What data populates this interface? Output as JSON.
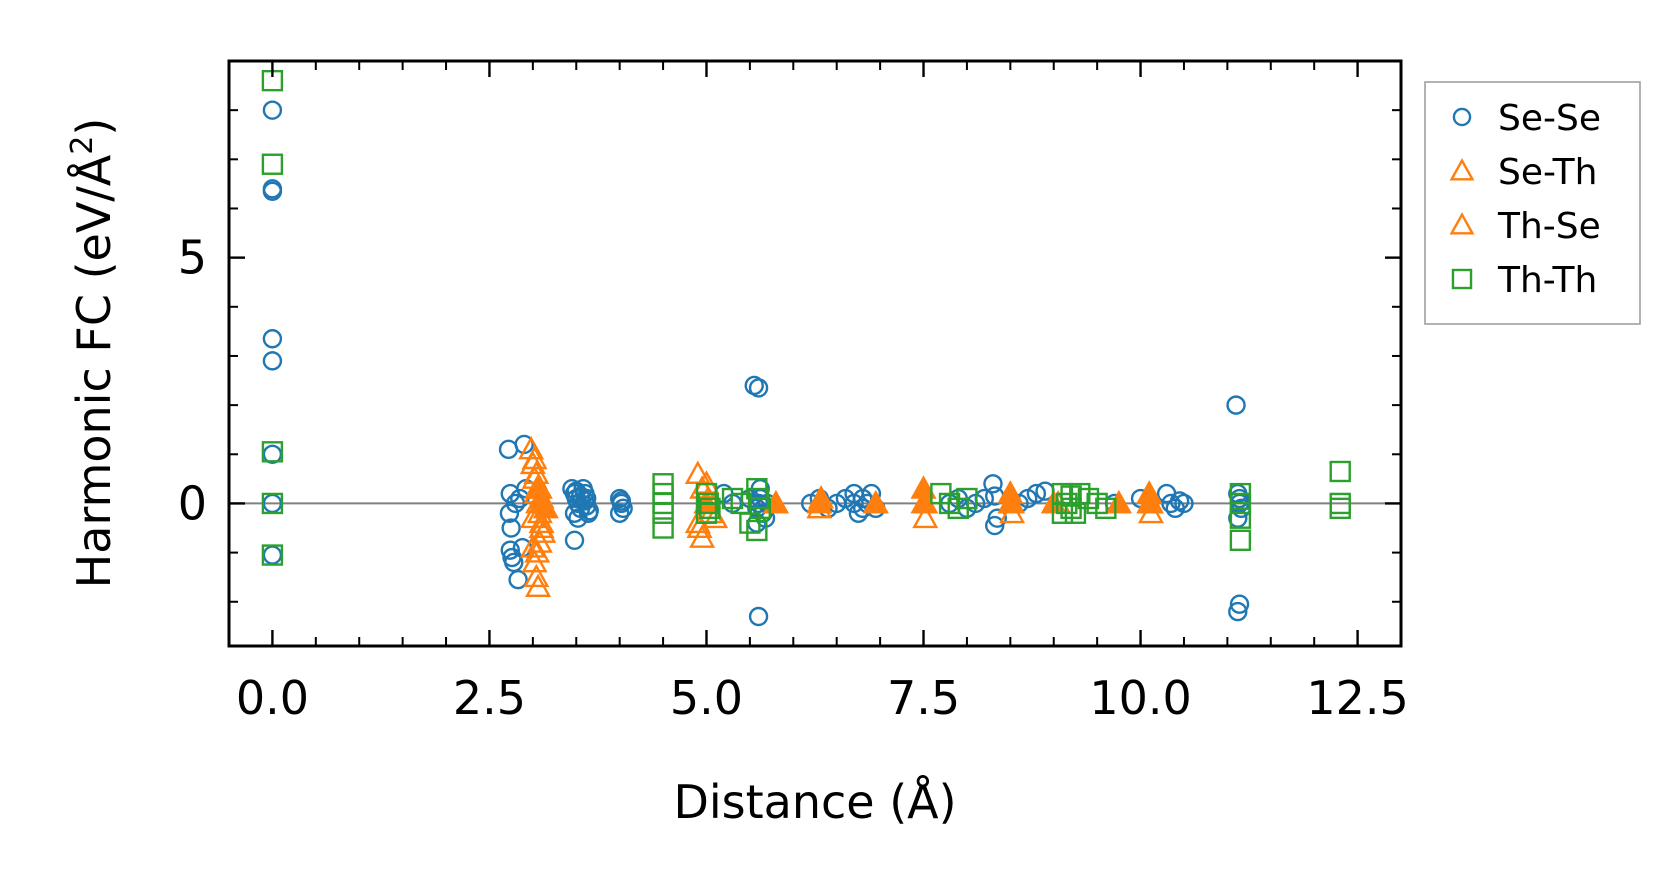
{
  "chart_data": {
    "type": "scatter",
    "title": "",
    "xlabel": "Distance (Å)",
    "ylabel_main": "Harmonic FC (eV/Å",
    "ylabel_sup": "2",
    "ylabel_close": ")",
    "xlim": [
      -0.5,
      13.0
    ],
    "ylim": [
      -2.9,
      9.0
    ],
    "xticks": [
      0.0,
      2.5,
      5.0,
      7.5,
      10.0,
      12.5
    ],
    "xtick_labels": [
      "0.0",
      "2.5",
      "5.0",
      "7.5",
      "10.0",
      "12.5"
    ],
    "yticks": [
      0,
      5
    ],
    "ytick_labels": [
      "0",
      "5"
    ],
    "zero_line": true,
    "legend_position": "outside-top-right",
    "series": [
      {
        "name": "Se-Se",
        "marker": "circle",
        "color": "#1f77b4",
        "x": [
          0.0,
          0.0,
          0.0,
          0.0,
          0.0,
          0.0,
          0.0,
          0.0,
          2.72,
          2.74,
          2.73,
          2.75,
          2.74,
          2.76,
          2.78,
          2.8,
          2.83,
          2.85,
          2.9,
          2.88,
          2.92,
          3.45,
          3.48,
          3.5,
          3.52,
          3.55,
          3.48,
          3.52,
          3.5,
          3.55,
          3.6,
          3.62,
          3.65,
          3.58,
          3.6,
          3.62,
          3.64,
          3.48,
          4.0,
          4.02,
          4.04,
          4.0,
          4.02,
          5.2,
          5.3,
          5.5,
          5.55,
          5.6,
          5.62,
          5.65,
          5.58,
          5.6,
          5.6,
          5.62,
          5.58,
          5.7,
          5.68,
          6.2,
          6.3,
          6.4,
          6.5,
          6.6,
          6.7,
          6.75,
          6.8,
          6.85,
          6.9,
          6.95,
          6.7,
          6.8,
          7.8,
          7.9,
          8.0,
          8.1,
          8.2,
          8.3,
          8.32,
          8.35,
          8.32,
          8.6,
          8.7,
          8.8,
          8.9,
          9.7,
          10.0,
          10.3,
          10.35,
          10.4,
          10.45,
          10.5,
          11.1,
          11.12,
          11.14,
          11.12,
          11.14,
          11.12,
          11.14,
          11.16
        ],
        "y": [
          8.0,
          6.4,
          6.35,
          3.35,
          2.9,
          1.0,
          0.0,
          -1.05,
          1.1,
          0.2,
          -0.2,
          -0.5,
          -0.95,
          -1.1,
          -1.2,
          0.0,
          -1.55,
          0.1,
          1.2,
          -0.9,
          0.3,
          0.3,
          0.2,
          0.1,
          0.0,
          -0.1,
          -0.2,
          -0.3,
          0.25,
          0.15,
          0.05,
          -0.05,
          -0.15,
          0.3,
          0.2,
          0.1,
          -0.2,
          -0.75,
          0.1,
          0.0,
          -0.1,
          -0.2,
          0.05,
          0.2,
          0.0,
          0.1,
          2.4,
          2.35,
          0.3,
          -0.2,
          -0.4,
          0.0,
          -2.3,
          0.1,
          -0.1,
          0.0,
          -0.3,
          0.0,
          0.1,
          -0.1,
          0.0,
          0.1,
          0.2,
          -0.2,
          0.1,
          0.0,
          0.2,
          -0.1,
          0.0,
          -0.1,
          0.0,
          0.1,
          -0.1,
          0.0,
          0.1,
          0.4,
          0.15,
          -0.3,
          -0.45,
          0.0,
          0.1,
          0.2,
          0.25,
          0.0,
          0.1,
          0.2,
          0.0,
          -0.1,
          0.05,
          0.0,
          2.0,
          0.2,
          0.0,
          -0.3,
          -2.05,
          -2.2,
          0.1,
          -0.1
        ]
      },
      {
        "name": "Se-Th",
        "marker": "triangle-open",
        "color": "#ff7f0e",
        "x": [
          2.98,
          3.0,
          3.02,
          3.04,
          3.06,
          3.08,
          3.1,
          3.12,
          3.0,
          3.02,
          3.04,
          3.06,
          3.08,
          3.1,
          3.0,
          3.05,
          3.02,
          3.08,
          3.1,
          3.04,
          4.9,
          4.95,
          5.0,
          5.05,
          5.1,
          4.92,
          4.95,
          5.0,
          5.02,
          4.9,
          5.8,
          6.3,
          6.95,
          7.5,
          7.52,
          8.5,
          8.52,
          9.05,
          9.75,
          10.1,
          10.12
        ],
        "y": [
          1.1,
          0.8,
          0.5,
          0.2,
          0.0,
          -0.2,
          -0.4,
          -0.6,
          -0.9,
          -1.2,
          -1.5,
          -1.7,
          0.3,
          0.1,
          -0.3,
          -1.0,
          0.9,
          -0.8,
          -0.5,
          0.6,
          0.6,
          0.3,
          0.0,
          -0.2,
          -0.3,
          -0.5,
          -0.7,
          0.4,
          0.1,
          -0.4,
          0.0,
          -0.1,
          0.0,
          0.0,
          -0.3,
          0.0,
          -0.2,
          0.0,
          0.0,
          0.0,
          -0.2
        ]
      },
      {
        "name": "Th-Se",
        "marker": "triangle-filled",
        "color": "#ff7f0e",
        "x": [
          3.05,
          3.1,
          3.15,
          5.0,
          5.8,
          6.3,
          6.32,
          6.95,
          7.5,
          7.52,
          8.5,
          8.52,
          9.0,
          9.75,
          10.1,
          10.12
        ],
        "y": [
          0.3,
          0.0,
          -0.1,
          0.0,
          0.0,
          0.0,
          0.1,
          0.0,
          0.3,
          0.0,
          0.2,
          0.0,
          0.0,
          0.0,
          0.2,
          0.0
        ]
      },
      {
        "name": "Th-Th",
        "marker": "square",
        "color": "#2ca02c",
        "x": [
          0.0,
          0.0,
          0.0,
          0.0,
          0.0,
          4.5,
          4.5,
          4.5,
          4.5,
          4.5,
          5.0,
          5.02,
          5.04,
          5.0,
          5.3,
          5.4,
          5.5,
          5.58,
          5.6,
          5.62,
          5.58,
          7.7,
          7.8,
          7.9,
          8.0,
          9.1,
          9.15,
          9.2,
          9.25,
          9.3,
          9.4,
          9.5,
          9.6,
          9.1,
          9.2,
          11.15,
          11.15,
          11.15,
          11.15,
          12.3,
          12.3,
          12.3
        ],
        "y": [
          8.6,
          6.9,
          1.05,
          0.0,
          -1.05,
          0.4,
          0.2,
          0.0,
          -0.2,
          -0.5,
          0.2,
          0.0,
          -0.1,
          -0.2,
          0.1,
          0.0,
          -0.4,
          0.3,
          0.1,
          -0.1,
          -0.55,
          0.2,
          0.0,
          -0.1,
          0.1,
          0.2,
          0.0,
          -0.1,
          -0.2,
          0.2,
          0.1,
          0.0,
          -0.1,
          -0.2,
          0.15,
          0.2,
          0.0,
          -0.3,
          -0.75,
          0.65,
          0.0,
          -0.1
        ]
      }
    ]
  }
}
